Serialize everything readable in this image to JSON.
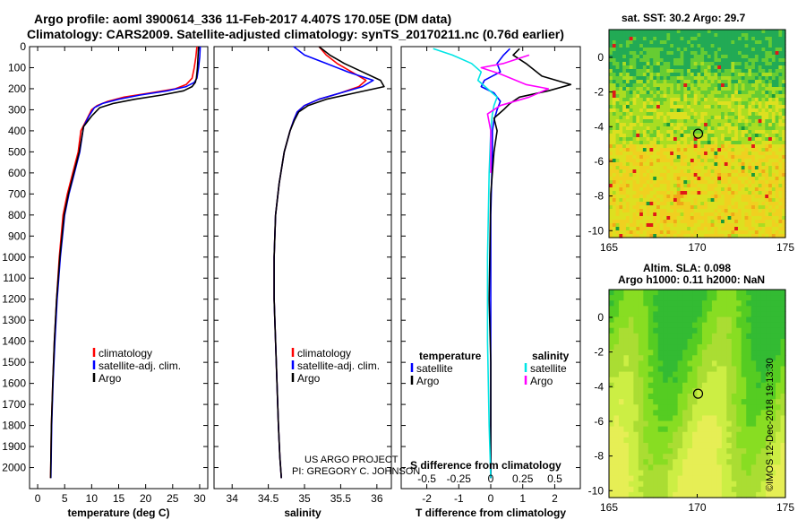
{
  "title_line1": "Argo profile: aoml 3900614_336 11-Feb-2017 4.407S 170.05E (DM data)",
  "title_line2": "Climatology: CARS2009. Satellite-adjusted climatology: synTS_20170211.nc (0.76d earlier)",
  "credit": "©IMOS 12-Dec-2018 19:13:30",
  "project_line1": "US ARGO PROJECT",
  "project_line2": "PI: GREGORY C. JOHNSON",
  "map_sst": {
    "title": "sat. SST: 30.2 Argo: 29.7",
    "lon_ticks": [
      165,
      170,
      175
    ],
    "lat_ticks": [
      0,
      -2,
      -4,
      -6,
      -8,
      -10
    ],
    "float_pos": [
      170.05,
      -4.407
    ]
  },
  "map_sla": {
    "title1": "Altim. SLA: 0.098",
    "title2": "Argo h1000: 0.11 h2000: NaN",
    "lon_ticks": [
      165,
      170,
      175
    ],
    "lat_ticks": [
      0,
      -2,
      -4,
      -6,
      -8,
      -10
    ],
    "float_pos": [
      170.05,
      -4.407
    ]
  },
  "colors": {
    "climatology": "#ff0000",
    "satellite": "#0000ff",
    "argo": "#000000",
    "sat_s": "#00e5e5",
    "argo_s": "#ff00ff"
  },
  "chart_data": [
    {
      "type": "line",
      "name": "temperature",
      "xlabel": "temperature (deg C)",
      "ylabel": "",
      "xlim": [
        -1.5,
        31.5
      ],
      "ylim": [
        2100,
        0
      ],
      "xticks": [
        0,
        5,
        10,
        15,
        20,
        25,
        30
      ],
      "yticks": [
        0,
        100,
        200,
        300,
        400,
        500,
        600,
        700,
        800,
        900,
        1000,
        1100,
        1200,
        1300,
        1400,
        1500,
        1600,
        1700,
        1800,
        1900,
        2000
      ],
      "legend": [
        "climatology",
        "satellite-adj. clim.",
        "Argo"
      ],
      "series": [
        {
          "name": "climatology",
          "color": "#ff0000",
          "x": [
            29.5,
            29.3,
            29.0,
            28.6,
            27.5,
            25.5,
            21,
            16,
            13,
            11,
            10,
            9,
            8,
            7.5,
            6.5,
            5.5,
            4.7,
            4,
            3.5,
            3.1,
            2.8,
            2.55,
            2.4
          ],
          "y": [
            0,
            50,
            100,
            150,
            180,
            200,
            220,
            240,
            260,
            280,
            300,
            350,
            400,
            500,
            600,
            700,
            800,
            1000,
            1200,
            1400,
            1600,
            1800,
            2050
          ]
        },
        {
          "name": "satellite",
          "color": "#0000ff",
          "x": [
            30.1,
            30.0,
            29.8,
            29.5,
            29.0,
            27.5,
            24,
            19,
            15,
            12,
            10.5,
            9.5,
            8.5,
            7.8,
            6.8,
            5.8,
            5,
            4.2,
            3.6,
            3.2,
            2.85,
            2.6,
            2.45
          ],
          "y": [
            0,
            50,
            100,
            150,
            170,
            190,
            210,
            230,
            250,
            270,
            290,
            330,
            380,
            500,
            600,
            700,
            800,
            1000,
            1200,
            1400,
            1600,
            1800,
            2050
          ]
        },
        {
          "name": "Argo",
          "color": "#000000",
          "x": [
            29.8,
            29.7,
            29.6,
            29.4,
            29.2,
            28.6,
            27,
            23,
            18,
            14,
            11.5,
            10,
            8.5,
            7.7,
            6.7,
            5.7,
            4.9,
            4.1,
            3.5,
            3.1,
            2.8,
            2.55,
            2.4
          ],
          "y": [
            0,
            50,
            100,
            150,
            170,
            190,
            210,
            230,
            250,
            270,
            290,
            330,
            380,
            500,
            600,
            700,
            800,
            1000,
            1200,
            1400,
            1600,
            1800,
            2050
          ]
        }
      ]
    },
    {
      "type": "line",
      "name": "salinity",
      "xlabel": "salinity",
      "xlim": [
        33.75,
        36.2
      ],
      "ylim": [
        2100,
        0
      ],
      "xticks": [
        34,
        34.5,
        35,
        35.5,
        36
      ],
      "legend": [
        "climatology",
        "satellite-adj. clim.",
        "Argo"
      ],
      "series": [
        {
          "name": "climatology",
          "color": "#ff0000",
          "x": [
            35.2,
            35.3,
            35.45,
            35.65,
            35.85,
            35.75,
            35.5,
            35.2,
            35.0,
            34.9,
            34.85,
            34.8,
            34.72,
            34.65,
            34.6,
            34.58,
            34.58,
            34.6,
            34.62,
            34.64,
            34.66,
            34.68
          ],
          "y": [
            0,
            40,
            80,
            120,
            160,
            190,
            220,
            250,
            280,
            310,
            350,
            400,
            500,
            650,
            800,
            1000,
            1200,
            1400,
            1600,
            1800,
            1950,
            2050
          ]
        },
        {
          "name": "satellite",
          "color": "#0000ff",
          "x": [
            34.85,
            35.0,
            35.3,
            35.6,
            35.95,
            35.8,
            35.5,
            35.2,
            35.0,
            34.9,
            34.85,
            34.8,
            34.72,
            34.65,
            34.6,
            34.58,
            34.58,
            34.6,
            34.62,
            34.64,
            34.66,
            34.68
          ],
          "y": [
            0,
            40,
            80,
            120,
            160,
            190,
            220,
            250,
            280,
            310,
            350,
            400,
            500,
            650,
            800,
            1000,
            1200,
            1400,
            1600,
            1800,
            1950,
            2050
          ]
        },
        {
          "name": "Argo",
          "color": "#000000",
          "x": [
            35.2,
            35.35,
            35.55,
            35.8,
            36.05,
            36.1,
            35.7,
            35.3,
            35.05,
            34.92,
            34.86,
            34.8,
            34.72,
            34.65,
            34.6,
            34.58,
            34.58,
            34.6,
            34.62,
            34.64,
            34.66,
            34.68
          ],
          "y": [
            0,
            40,
            80,
            120,
            160,
            190,
            220,
            250,
            280,
            310,
            350,
            400,
            500,
            650,
            800,
            1000,
            1200,
            1400,
            1600,
            1800,
            1950,
            2050
          ]
        }
      ]
    },
    {
      "type": "line",
      "name": "differences",
      "xlabel": "T difference from climatology",
      "top_xlabel": "S difference from climatology",
      "xlim": [
        -2.8,
        2.8
      ],
      "ylim": [
        2100,
        0
      ],
      "xticks": [
        -2,
        -1,
        0,
        1,
        2
      ],
      "top_xticks_labels": [
        "-0.5",
        "-0.25",
        "0",
        "0.25",
        "0.5"
      ],
      "top_xticks_pos": [
        -2,
        -1,
        0,
        1,
        2
      ],
      "legend_left_title": "temperature",
      "legend_right_title": "salinity",
      "legend_left": [
        "satellite",
        "Argo"
      ],
      "legend_right": [
        "satellite",
        "Argo"
      ],
      "series": [
        {
          "name": "T satellite",
          "color": "#0000ff",
          "x": [
            0.6,
            0.4,
            0.2,
            0.3,
            -0.2,
            -0.3,
            0.1,
            0.3,
            0.2,
            0.1,
            0.05,
            0.05,
            0,
            0,
            0
          ],
          "y": [
            10,
            40,
            80,
            120,
            160,
            190,
            220,
            260,
            300,
            350,
            400,
            500,
            800,
            1200,
            2050
          ]
        },
        {
          "name": "T Argo",
          "color": "#000000",
          "x": [
            0.9,
            0.7,
            1.1,
            1.6,
            2.5,
            1.8,
            0.9,
            0.6,
            0.4,
            0.1,
            0.2,
            0.1,
            0,
            -0.05,
            0,
            0
          ],
          "y": [
            10,
            40,
            80,
            140,
            180,
            210,
            240,
            270,
            300,
            340,
            400,
            500,
            700,
            1200,
            1500,
            2050
          ]
        },
        {
          "name": "S satellite",
          "color": "#00e5e5",
          "x": [
            -1.8,
            -1.2,
            -0.6,
            -0.3,
            -0.4,
            -0.1,
            0.2,
            0.1,
            0.05,
            0,
            -0.05,
            -0.1,
            -0.1,
            -0.05,
            0
          ],
          "y": [
            10,
            40,
            80,
            120,
            160,
            200,
            240,
            280,
            320,
            400,
            600,
            1000,
            1400,
            1800,
            2050
          ]
        },
        {
          "name": "S Argo",
          "color": "#ff00ff",
          "x": [
            1.2,
            0.4,
            -0.3,
            0.3,
            1.1,
            1.8,
            1.2,
            0.3,
            -0.1,
            0,
            0
          ],
          "y": [
            40,
            80,
            100,
            130,
            180,
            200,
            240,
            280,
            320,
            400,
            600
          ]
        }
      ]
    }
  ]
}
